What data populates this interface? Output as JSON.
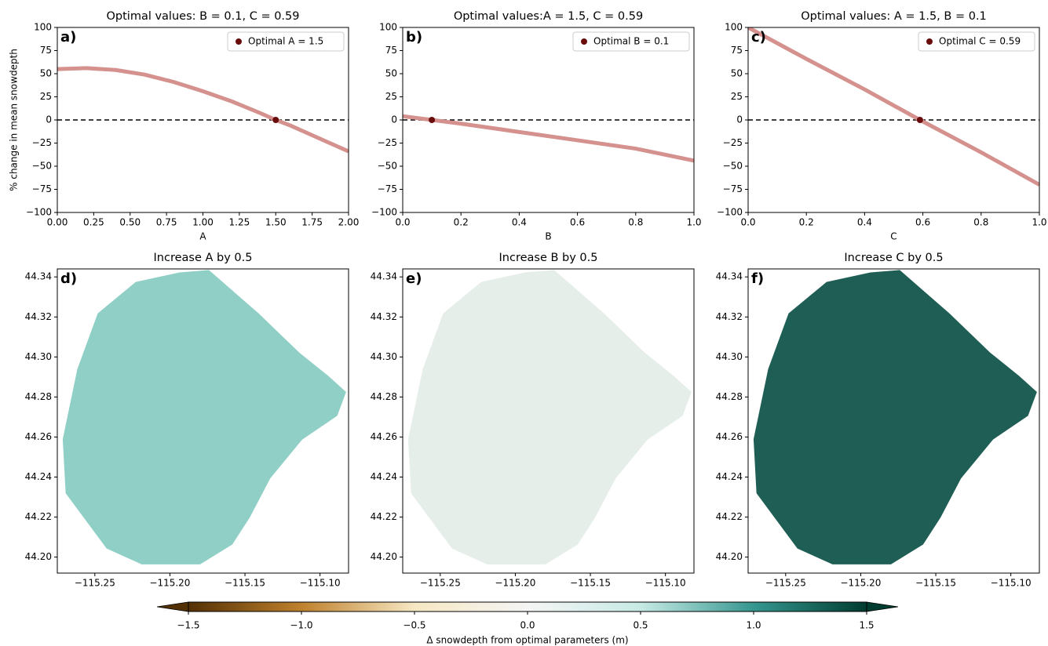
{
  "chart_data": [
    {
      "type": "line",
      "title": "Optimal values: B = 0.1, C = 0.59",
      "panel_label": "a)",
      "xlabel": "A",
      "ylabel": "% change in mean snowdepth",
      "x": [
        0,
        0.2,
        0.4,
        0.6,
        0.8,
        1.0,
        1.2,
        1.4,
        1.5,
        1.6,
        1.8,
        2.0
      ],
      "values": [
        55,
        56,
        54,
        49,
        41,
        31,
        20,
        7,
        0,
        -6,
        -20,
        -34
      ],
      "color": "#d4918d",
      "hline": 0,
      "series": [
        {
          "name": "Optimal A = 1.5",
          "x": [
            1.5
          ],
          "values": [
            0
          ],
          "color": "#6b0c0c"
        }
      ],
      "xlim": [
        0,
        2
      ],
      "ylim": [
        -100,
        100
      ],
      "xticks": [
        {
          "value": 0,
          "label": "0.00"
        },
        {
          "value": 0.25,
          "label": "0.25"
        },
        {
          "value": 0.5,
          "label": "0.50"
        },
        {
          "value": 0.75,
          "label": "0.75"
        },
        {
          "value": 1,
          "label": "1.00"
        },
        {
          "value": 1.25,
          "label": "1.25"
        },
        {
          "value": 1.5,
          "label": "1.50"
        },
        {
          "value": 1.75,
          "label": "1.75"
        },
        {
          "value": 2,
          "label": "2.00"
        }
      ],
      "yticks": [
        {
          "value": -100,
          "label": "−100"
        },
        {
          "value": -75,
          "label": "−75"
        },
        {
          "value": -50,
          "label": "−50"
        },
        {
          "value": -25,
          "label": "−25"
        },
        0,
        25,
        50,
        75,
        100
      ]
    },
    {
      "type": "line",
      "title": "Optimal values:A = 1.5, C = 0.59",
      "panel_label": "b)",
      "xlabel": "B",
      "x": [
        0,
        0.1,
        0.2,
        0.4,
        0.6,
        0.8,
        1.0
      ],
      "values": [
        4,
        0,
        -4,
        -13,
        -22,
        -31,
        -44
      ],
      "color": "#d4918d",
      "hline": 0,
      "series": [
        {
          "name": "Optimal B = 0.1",
          "x": [
            0.1
          ],
          "values": [
            0
          ],
          "color": "#6b0c0c"
        }
      ],
      "xlim": [
        0,
        1
      ],
      "ylim": [
        -100,
        100
      ],
      "xticks": [
        {
          "value": 0,
          "label": "0.0"
        },
        {
          "value": 0.2,
          "label": "0.2"
        },
        {
          "value": 0.4,
          "label": "0.4"
        },
        {
          "value": 0.6,
          "label": "0.6"
        },
        {
          "value": 0.8,
          "label": "0.8"
        },
        {
          "value": 1,
          "label": "1.0"
        }
      ],
      "yticks": [
        {
          "value": -100,
          "label": "−100"
        },
        {
          "value": -75,
          "label": "−75"
        },
        {
          "value": -50,
          "label": "−50"
        },
        {
          "value": -25,
          "label": "−25"
        },
        0,
        25,
        50,
        75,
        100
      ]
    },
    {
      "type": "line",
      "title": "Optimal values: A = 1.5, B = 0.1",
      "panel_label": "c)",
      "xlabel": "C",
      "x": [
        0,
        0.2,
        0.4,
        0.59,
        0.8,
        1.0
      ],
      "values": [
        100,
        66,
        33,
        0,
        -35,
        -70
      ],
      "color": "#d4918d",
      "hline": 0,
      "series": [
        {
          "name": "Optimal C = 0.59",
          "x": [
            0.59
          ],
          "values": [
            0
          ],
          "color": "#6b0c0c"
        }
      ],
      "xlim": [
        0,
        1
      ],
      "ylim": [
        -100,
        100
      ],
      "xticks": [
        {
          "value": 0,
          "label": "0.0"
        },
        {
          "value": 0.2,
          "label": "0.2"
        },
        {
          "value": 0.4,
          "label": "0.4"
        },
        {
          "value": 0.6,
          "label": "0.6"
        },
        {
          "value": 0.8,
          "label": "0.8"
        },
        {
          "value": 1,
          "label": "1.0"
        }
      ],
      "yticks": [
        {
          "value": -100,
          "label": "−100"
        },
        {
          "value": -75,
          "label": "−75"
        },
        {
          "value": -50,
          "label": "−50"
        },
        {
          "value": -25,
          "label": "−25"
        },
        0,
        25,
        50,
        75,
        100
      ]
    },
    {
      "type": "map",
      "title": "Increase A by 0.5",
      "panel_label": "d)",
      "color": "#8fcfc6",
      "xlim": [
        -115.275,
        -115.081
      ],
      "ylim": [
        44.192,
        44.344
      ],
      "xticks": [
        {
          "value": -115.25,
          "label": "−115.25"
        },
        {
          "value": -115.2,
          "label": "−115.20"
        },
        {
          "value": -115.15,
          "label": "−115.15"
        },
        {
          "value": -115.1,
          "label": "−115.10"
        }
      ],
      "yticks": [
        {
          "value": 44.2,
          "label": "44.20"
        },
        44.22,
        44.24,
        44.26,
        44.28,
        {
          "value": 44.3,
          "label": "44.30"
        },
        44.32,
        44.34
      ]
    },
    {
      "type": "map",
      "title": "Increase B by 0.5",
      "panel_label": "e)",
      "color": "#e6eeea",
      "xlim": [
        -115.275,
        -115.081
      ],
      "ylim": [
        44.192,
        44.344
      ],
      "xticks": [
        {
          "value": -115.25,
          "label": "−115.25"
        },
        {
          "value": -115.2,
          "label": "−115.20"
        },
        {
          "value": -115.15,
          "label": "−115.15"
        },
        {
          "value": -115.1,
          "label": "−115.10"
        }
      ],
      "yticks": [
        {
          "value": 44.2,
          "label": "44.20"
        },
        44.22,
        44.24,
        44.26,
        44.28,
        {
          "value": 44.3,
          "label": "44.30"
        },
        44.32,
        44.34
      ]
    },
    {
      "type": "map",
      "title": "Increase C by 0.5",
      "panel_label": "f)",
      "color": "#1f5e55",
      "xlim": [
        -115.275,
        -115.081
      ],
      "ylim": [
        44.192,
        44.344
      ],
      "xticks": [
        {
          "value": -115.25,
          "label": "−115.25"
        },
        {
          "value": -115.2,
          "label": "−115.20"
        },
        {
          "value": -115.15,
          "label": "−115.15"
        },
        {
          "value": -115.1,
          "label": "−115.10"
        }
      ],
      "yticks": [
        {
          "value": 44.2,
          "label": "44.20"
        },
        44.22,
        44.24,
        44.26,
        44.28,
        {
          "value": 44.3,
          "label": "44.30"
        },
        44.32,
        44.34
      ]
    }
  ],
  "colorbar": {
    "label": "Δ snowdepth from optimal parameters (m)",
    "lim": [
      -1.5,
      1.5
    ],
    "colors": [
      "#543005",
      "#bf812d",
      "#f6e8c3",
      "#f5f5f5",
      "#c7eae5",
      "#35978f",
      "#003c30"
    ],
    "ticks": [
      {
        "value": -1.5,
        "label": "−1.5"
      },
      {
        "value": -1,
        "label": "−1.0"
      },
      {
        "value": -0.5,
        "label": "−0.5"
      },
      {
        "value": 0,
        "label": "0.0"
      },
      0.5,
      {
        "value": 1,
        "label": "1.0"
      },
      1.5
    ]
  }
}
